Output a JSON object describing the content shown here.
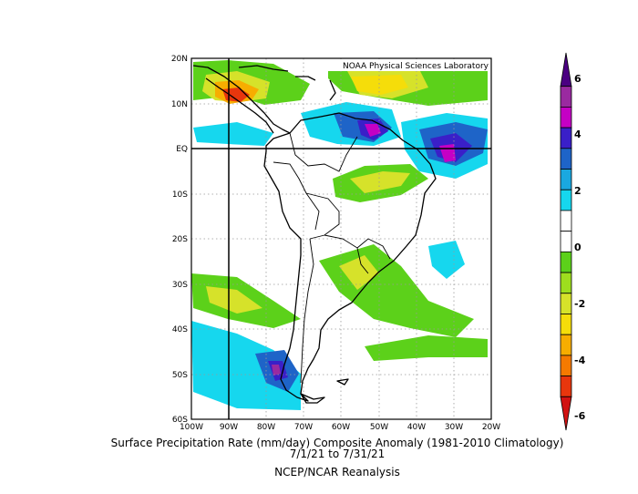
{
  "map": {
    "credit": "NOAA Physical Sciences Laboratory",
    "lat_labels": [
      "20N",
      "10N",
      "EQ",
      "10S",
      "20S",
      "30S",
      "40S",
      "50S",
      "60S"
    ],
    "lon_labels": [
      "100W",
      "90W",
      "80W",
      "70W",
      "60W",
      "50W",
      "40W",
      "30W",
      "20W"
    ],
    "lat_range": [
      -60,
      20
    ],
    "lon_range": [
      -100,
      -20
    ],
    "reference_lines": {
      "lat": 0,
      "lon": -90
    },
    "grid": "dotted"
  },
  "colorbar": {
    "labels": [
      "6",
      "4",
      "2",
      "0",
      "-2",
      "-4",
      "-6"
    ],
    "colors": [
      "#4b0082",
      "#9a2aa0",
      "#c500c5",
      "#3a1fc8",
      "#1e64c8",
      "#1aa8e0",
      "#16d7ee",
      "#ffffff",
      "#ffffff",
      "#5cd11a",
      "#9ede1e",
      "#d6e22a",
      "#f5dd0a",
      "#f7ad00",
      "#f57a00",
      "#e8360d",
      "#d11212"
    ]
  },
  "caption": {
    "line1": "Surface Precipitation Rate (mm/day) Composite Anomaly (1981-2010 Climatology)",
    "line2": "7/1/21  to 7/31/21",
    "line3": "NCEP/NCAR Reanalysis"
  }
}
